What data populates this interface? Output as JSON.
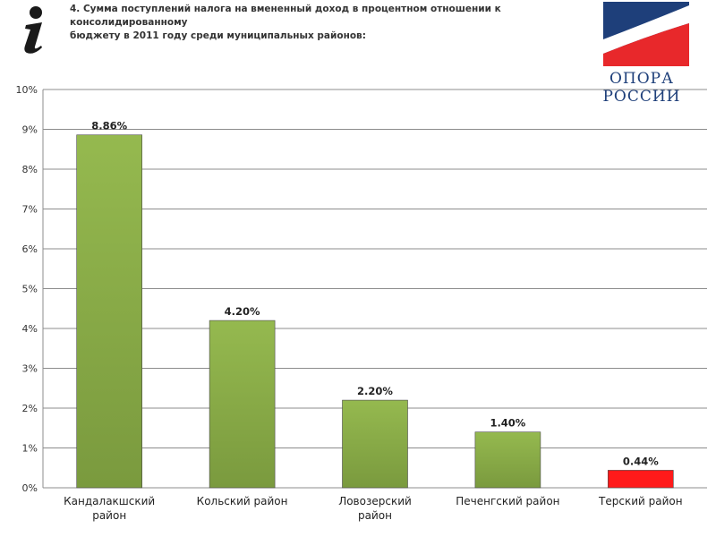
{
  "header": {
    "title_line1": "4. Сумма поступлений налога на вмененный доход в процентном отношении к консолидированному",
    "title_line2": "бюджету в 2011 году среди муниципальных районов:",
    "logo_text": "ОПОРА РОССИИ",
    "info_icon": "info-icon"
  },
  "colors": {
    "bar_green": "#7a9a3e",
    "bar_green_light": "#95b94f",
    "bar_red": "#ff1a1a",
    "grid": "#8c8c8c",
    "logo_blue": "#1e3f7a",
    "logo_red": "#e8282b"
  },
  "chart_data": {
    "type": "bar",
    "categories": [
      [
        "Кандалакшский",
        "район"
      ],
      [
        "Кольский район"
      ],
      [
        "Ловозерский",
        "район"
      ],
      [
        "Печенгский район"
      ],
      [
        "Терский район"
      ]
    ],
    "values": [
      8.86,
      4.2,
      2.2,
      1.4,
      0.44
    ],
    "data_labels": [
      "8.86%",
      "4.20%",
      "2.20%",
      "1.40%",
      "0.44%"
    ],
    "bar_colors": [
      "green",
      "green",
      "green",
      "green",
      "red"
    ],
    "yticks": [
      "0%",
      "1%",
      "2%",
      "3%",
      "4%",
      "5%",
      "6%",
      "7%",
      "8%",
      "9%",
      "10%"
    ],
    "ylim": [
      0,
      10
    ],
    "grid": true
  }
}
